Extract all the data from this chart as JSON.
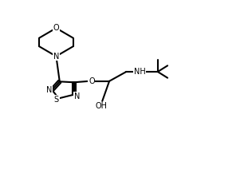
{
  "background": "#ffffff",
  "line_color": "#000000",
  "line_width": 1.5,
  "figsize": [
    3.06,
    2.12
  ],
  "dpi": 100,
  "xlim": [
    0,
    9
  ],
  "ylim": [
    0,
    7
  ]
}
